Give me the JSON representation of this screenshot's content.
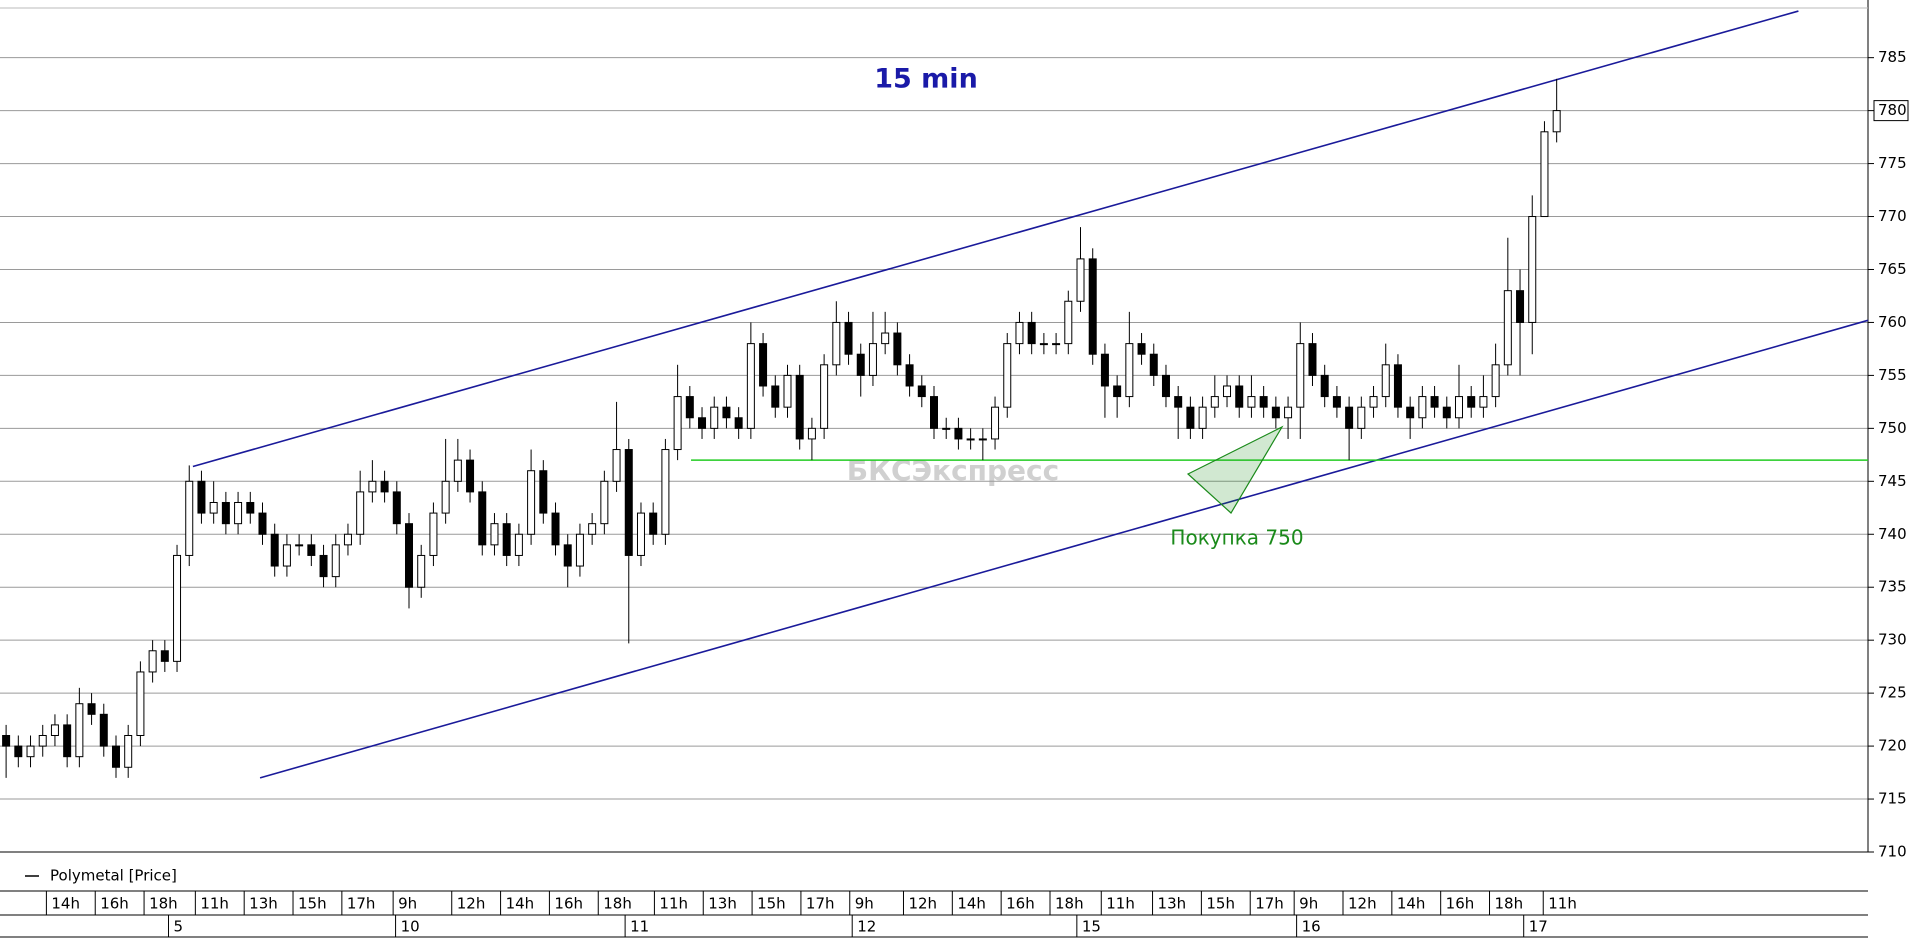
{
  "chart_data": {
    "type": "candlestick",
    "title": "15 min",
    "title_color": "#1a1aa8",
    "watermark": "БКСЭкспресс",
    "annotation": {
      "text": "Покупка 750",
      "color": "#1a8a1a"
    },
    "last_price": 780,
    "xlim": [
      0,
      153
    ],
    "ylim": [
      710,
      789.5
    ],
    "yticks": [
      710,
      715,
      720,
      725,
      730,
      735,
      740,
      745,
      750,
      755,
      760,
      765,
      770,
      775,
      780,
      785
    ],
    "grid": true,
    "xticks": [
      {
        "value": 3.8,
        "label": "14h"
      },
      {
        "value": 7.8,
        "label": "16h"
      },
      {
        "value": 11.8,
        "label": "18h"
      },
      {
        "value": 16.0,
        "label": "11h"
      },
      {
        "value": 20.0,
        "label": "13h"
      },
      {
        "value": 24.0,
        "label": "15h"
      },
      {
        "value": 28.0,
        "label": "17h"
      },
      {
        "value": 32.2,
        "label": "9h"
      },
      {
        "value": 37.0,
        "label": "12h"
      },
      {
        "value": 41.0,
        "label": "14h"
      },
      {
        "value": 45.0,
        "label": "16h"
      },
      {
        "value": 49.0,
        "label": "18h"
      },
      {
        "value": 53.6,
        "label": "11h"
      },
      {
        "value": 57.6,
        "label": "13h"
      },
      {
        "value": 61.6,
        "label": "15h"
      },
      {
        "value": 65.6,
        "label": "17h"
      },
      {
        "value": 69.6,
        "label": "9h"
      },
      {
        "value": 74.0,
        "label": "12h"
      },
      {
        "value": 78.0,
        "label": "14h"
      },
      {
        "value": 82.0,
        "label": "16h"
      },
      {
        "value": 86.0,
        "label": "18h"
      },
      {
        "value": 90.2,
        "label": "11h"
      },
      {
        "value": 94.4,
        "label": "13h"
      },
      {
        "value": 98.4,
        "label": "15h"
      },
      {
        "value": 102.4,
        "label": "17h"
      },
      {
        "value": 106.0,
        "label": "9h"
      },
      {
        "value": 110.0,
        "label": "12h"
      },
      {
        "value": 114.0,
        "label": "14h"
      },
      {
        "value": 118.0,
        "label": "16h"
      },
      {
        "value": 122.0,
        "label": "18h"
      },
      {
        "value": 126.4,
        "label": "11h"
      }
    ],
    "date_ticks": [
      {
        "value": 13.8,
        "label": "5"
      },
      {
        "value": 32.4,
        "label": "10"
      },
      {
        "value": 51.2,
        "label": "11"
      },
      {
        "value": 69.8,
        "label": "12"
      },
      {
        "value": 88.2,
        "label": "15"
      },
      {
        "value": 106.2,
        "label": "16"
      },
      {
        "value": 124.8,
        "label": "17"
      }
    ],
    "trend_lines": [
      {
        "color": "#1a1a9a",
        "x": [
          15.8,
          147.3
        ],
        "y": [
          746.4,
          789.4
        ]
      },
      {
        "color": "#1a1a9a",
        "x": [
          21.3,
          153
        ],
        "y": [
          717,
          760.2
        ]
      },
      {
        "color": "#22cc22",
        "x": [
          56.6,
          153
        ],
        "y": [
          747,
          747
        ]
      }
    ],
    "series": [
      {
        "name": "Polymetal [Price]",
        "color": "#000000",
        "x": [
          0.5,
          1.5,
          2.5,
          3.5,
          4.5,
          5.5,
          6.5,
          7.5,
          8.5,
          9.5,
          10.5,
          11.5,
          12.5,
          13.5,
          14.5,
          15.5,
          16.5,
          17.5,
          18.5,
          19.5,
          20.5,
          21.5,
          22.5,
          23.5,
          24.5,
          25.5,
          26.5,
          27.5,
          28.5,
          29.5,
          30.5,
          31.5,
          32.5,
          33.5,
          34.5,
          35.5,
          36.5,
          37.5,
          38.5,
          39.5,
          40.5,
          41.5,
          42.5,
          43.5,
          44.5,
          45.5,
          46.5,
          47.5,
          48.5,
          49.5,
          50.5,
          51.5,
          52.5,
          53.5,
          54.5,
          55.5,
          56.5,
          57.5,
          58.5,
          59.5,
          60.5,
          61.5,
          62.5,
          63.5,
          64.5,
          65.5,
          66.5,
          67.5,
          68.5,
          69.5,
          70.5,
          71.5,
          72.5,
          73.5,
          74.5,
          75.5,
          76.5,
          77.5,
          78.5,
          79.5,
          80.5,
          81.5,
          82.5,
          83.5,
          84.5,
          85.5,
          86.5,
          87.5,
          88.5,
          89.5,
          90.5,
          91.5,
          92.5,
          93.5,
          94.5,
          95.5,
          96.5,
          97.5,
          98.5,
          99.5,
          100.5,
          101.5,
          102.5,
          103.5,
          104.5,
          105.5,
          106.5,
          107.5,
          108.5,
          109.5,
          110.5,
          111.5,
          112.5,
          113.5,
          114.5,
          115.5,
          116.5,
          117.5,
          118.5,
          119.5,
          120.5,
          121.5,
          122.5,
          123.5,
          124.5,
          125.5,
          126.5,
          127.5
        ],
        "open": [
          721,
          720,
          719,
          720,
          721,
          722,
          719,
          724,
          723,
          720,
          718,
          721,
          727,
          729,
          728,
          738,
          745,
          742,
          743,
          741,
          743,
          742,
          740,
          737,
          739,
          739,
          738,
          736,
          739,
          740,
          744,
          745,
          744,
          741,
          735,
          738,
          742,
          745,
          747,
          744,
          739,
          741,
          738,
          740,
          746,
          742,
          739,
          737,
          740,
          741,
          745,
          748,
          738,
          742,
          740,
          748,
          753,
          751,
          750,
          752,
          751,
          750,
          758,
          754,
          752,
          755,
          749,
          750,
          756,
          760,
          757,
          755,
          758,
          759,
          756,
          754,
          753,
          750,
          750,
          749,
          749,
          749,
          752,
          758,
          760,
          758,
          758,
          758,
          762,
          766,
          757,
          754,
          753,
          758,
          757,
          755,
          753,
          752,
          750,
          752,
          753,
          754,
          752,
          753,
          752,
          751,
          752,
          758,
          755,
          753,
          752,
          750,
          752,
          753,
          756,
          752,
          751,
          753,
          752,
          751,
          753,
          752,
          753,
          756,
          763,
          760,
          770,
          778
        ],
        "high": [
          722,
          721,
          721,
          722,
          723,
          723,
          725.5,
          725,
          724,
          721,
          722,
          728,
          730,
          730,
          739,
          746.5,
          746,
          745,
          744,
          744,
          744,
          743,
          741,
          740,
          740,
          740,
          739,
          740,
          741,
          746,
          747,
          746,
          745,
          742,
          739,
          743,
          749,
          749,
          748,
          745,
          742,
          742,
          741,
          748,
          747,
          743,
          740,
          741,
          742,
          746,
          752.5,
          749,
          743,
          743,
          749,
          756,
          754,
          752,
          753,
          753,
          752,
          760,
          759,
          755,
          756,
          756,
          751,
          757,
          762,
          761,
          758,
          761,
          761,
          760,
          757,
          755,
          754,
          751,
          751,
          750,
          750,
          753,
          759,
          761,
          761,
          759,
          759,
          763,
          769,
          767,
          758,
          755,
          761,
          759,
          758,
          756,
          754,
          753,
          753,
          755,
          755,
          755,
          755,
          754,
          753,
          753,
          760,
          759,
          756,
          754,
          753,
          753,
          754,
          758,
          757,
          753,
          754,
          754,
          753,
          756,
          754,
          755,
          758,
          768,
          765,
          772,
          779,
          783
        ],
        "low": [
          717,
          718,
          718,
          719,
          720,
          718,
          718,
          722,
          719,
          717,
          717,
          720,
          726,
          727,
          727,
          737,
          741,
          741,
          740,
          740,
          741,
          739,
          736,
          736,
          738,
          737,
          735,
          735,
          738,
          739,
          743,
          743,
          740,
          733,
          734,
          737,
          741,
          744,
          743,
          738,
          738,
          737,
          737,
          739,
          741,
          738,
          735,
          736,
          739,
          740,
          744,
          729.7,
          737,
          739,
          739,
          747,
          750,
          749,
          749,
          750,
          749,
          749,
          753,
          751,
          751,
          748,
          747,
          749,
          755,
          756,
          753,
          754,
          757,
          755,
          753,
          752,
          749,
          749,
          748,
          748,
          747,
          748,
          751,
          757,
          757,
          757,
          757,
          757,
          761,
          756,
          751,
          751,
          752,
          756,
          754,
          752,
          749,
          749,
          749,
          751,
          752,
          751,
          751,
          751,
          750,
          749,
          749,
          754,
          752,
          751,
          747,
          749,
          751,
          752,
          751,
          749,
          750,
          751,
          750,
          750,
          751,
          751,
          752,
          755,
          755,
          757,
          770,
          777
        ],
        "close": [
          720,
          719,
          720,
          721,
          722,
          719,
          724,
          723,
          720,
          718,
          721,
          727,
          729,
          728,
          738,
          745,
          742,
          743,
          741,
          743,
          742,
          740,
          737,
          739,
          739,
          738,
          736,
          739,
          740,
          744,
          745,
          744,
          741,
          735,
          738,
          742,
          745,
          747,
          744,
          739,
          741,
          738,
          740,
          746,
          742,
          739,
          737,
          740,
          741,
          745,
          748,
          738,
          742,
          740,
          748,
          753,
          751,
          750,
          752,
          751,
          750,
          758,
          754,
          752,
          755,
          749,
          750,
          756,
          760,
          757,
          755,
          758,
          759,
          756,
          754,
          753,
          750,
          750,
          749,
          749,
          749,
          752,
          758,
          760,
          758,
          758,
          758,
          762,
          766,
          757,
          754,
          753,
          758,
          757,
          755,
          753,
          752,
          750,
          752,
          753,
          754,
          752,
          753,
          752,
          751,
          752,
          758,
          755,
          753,
          752,
          750,
          752,
          753,
          756,
          752,
          751,
          753,
          752,
          751,
          753,
          752,
          753,
          756,
          763,
          760,
          770,
          778,
          780
        ]
      }
    ]
  }
}
